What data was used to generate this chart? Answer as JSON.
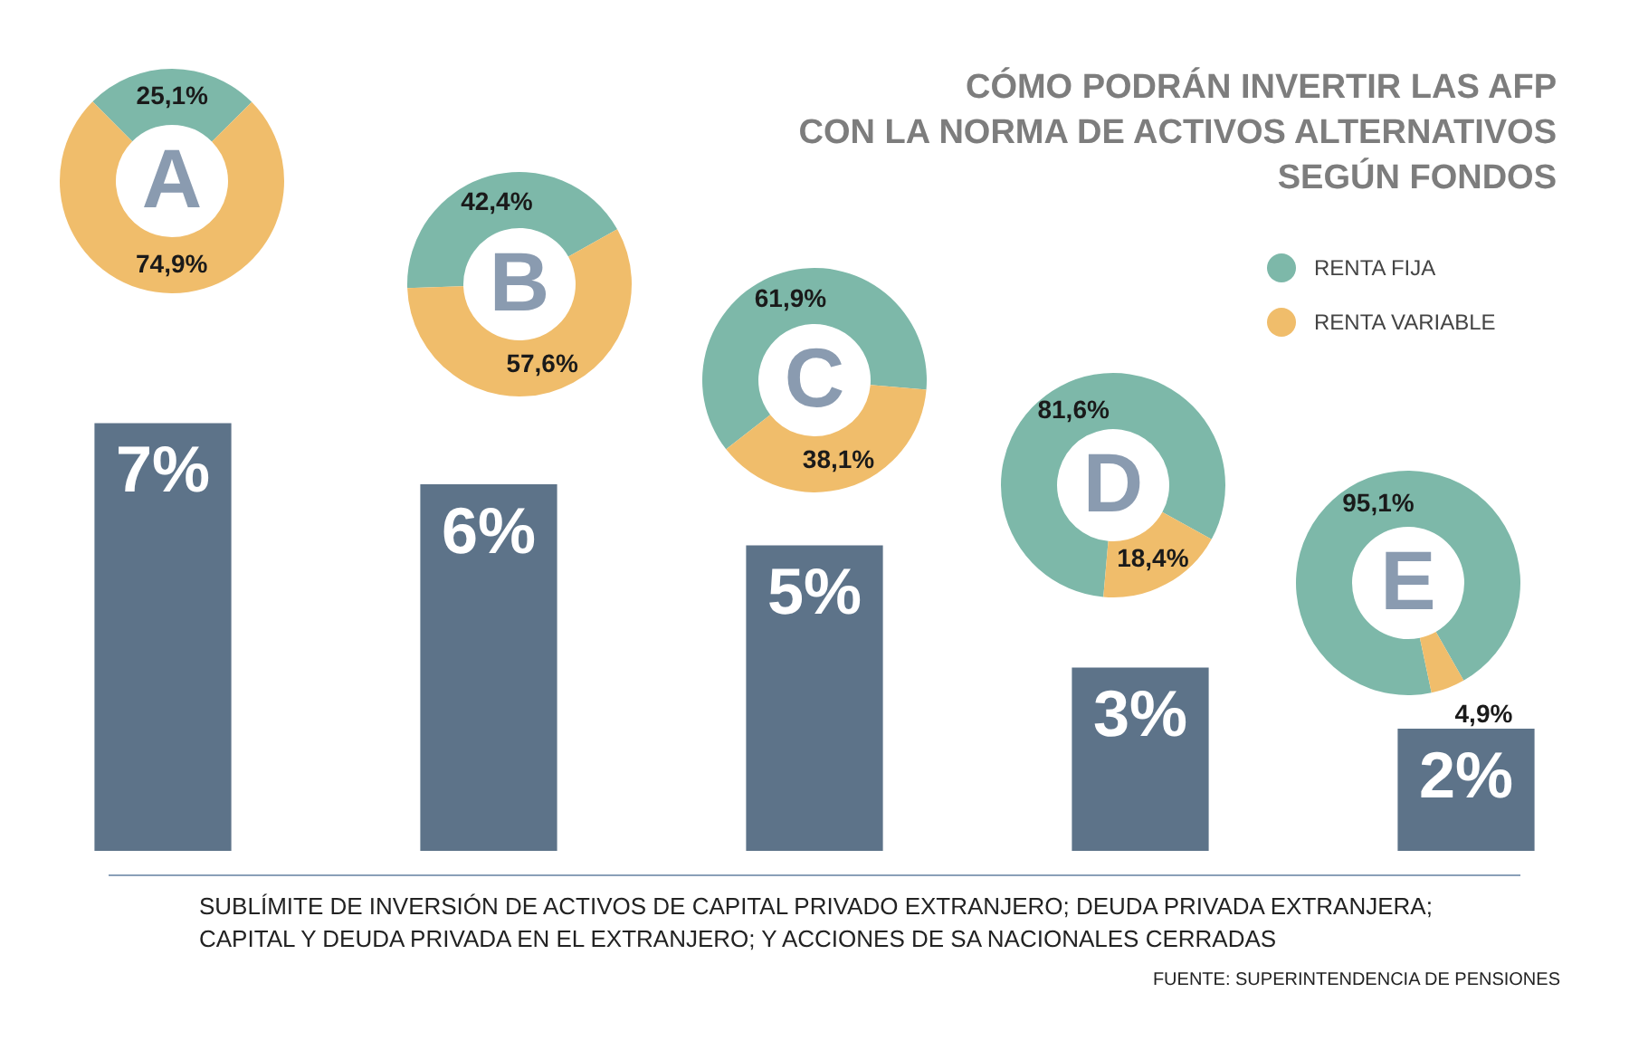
{
  "chart_data": [
    {
      "type": "bar",
      "title": "CÓMO PODRÁN INVERTIR LAS AFP\nCON LA NORMA DE ACTIVOS ALTERNATIVOS\nSEGÚN FONDOS",
      "categories": [
        null,
        null,
        null,
        null,
        null
      ],
      "values": [
        7,
        6,
        5,
        3,
        2
      ],
      "color": "#5d7389",
      "value_labels": [
        "7%",
        "6%",
        "5%",
        "3%",
        "2%"
      ],
      "annotations": [
        "SUBLÍMITE DE INVERSIÓN DE ACTIVOS DE CAPITAL PRIVADO EXTRANJERO; DEUDA PRIVADA EXTRANJERA;\nCAPITAL Y DEUDA PRIVADA EN EL EXTRANJERO; Y ACCIONES DE SA NACIONALES CERRADAS",
        "FUENTE: SUPERINTENDENCIA DE PENSIONES"
      ]
    },
    {
      "type": "donut",
      "title": "A",
      "categories": [
        null,
        null
      ],
      "values": [
        25.1,
        74.9
      ],
      "colors": [
        "#7db8a9",
        "#f0bd6b"
      ],
      "value_labels": [
        "25,1%",
        "74,9%"
      ]
    },
    {
      "type": "donut",
      "title": "B",
      "categories": [
        null,
        null
      ],
      "values": [
        42.4,
        57.6
      ],
      "colors": [
        "#7db8a9",
        "#f0bd6b"
      ],
      "value_labels": [
        "42,4%",
        "57,6%"
      ]
    },
    {
      "type": "donut",
      "title": "C",
      "categories": [
        null,
        null
      ],
      "values": [
        61.9,
        38.1
      ],
      "colors": [
        "#7db8a9",
        "#f0bd6b"
      ],
      "value_labels": [
        "61,9%",
        "38,1%"
      ]
    },
    {
      "type": "donut",
      "title": "D",
      "categories": [
        null,
        null
      ],
      "values": [
        81.6,
        18.4
      ],
      "colors": [
        "#7db8a9",
        "#f0bd6b"
      ],
      "value_labels": [
        "81,6%",
        "18,4%"
      ]
    },
    {
      "type": "donut",
      "title": "E",
      "categories": [
        "RENTA FIJA",
        "RENTA VARIABLE"
      ],
      "values": [
        95.1,
        4.9
      ],
      "colors": [
        "#7db8a9",
        "#f0bd6b"
      ],
      "value_labels": [
        "95,1%",
        "4,9%"
      ],
      "legend": "top"
    }
  ]
}
